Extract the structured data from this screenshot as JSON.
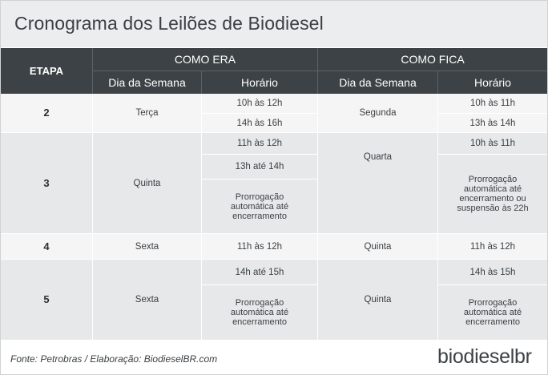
{
  "title": "Cronograma dos Leilões de Biodiesel",
  "header": {
    "etapa": "ETAPA",
    "como_era": "COMO ERA",
    "como_fica": "COMO FICA",
    "dia_da_semana": "Dia da Semana",
    "horario": "Horário"
  },
  "rows": [
    {
      "etapa": "2",
      "era_dia": "Terça",
      "era_horarios": [
        "10h às 12h",
        "14h às 16h"
      ],
      "fica_dia": "Segunda",
      "fica_horarios": [
        "10h às 11h",
        "13h às 14h"
      ]
    },
    {
      "etapa": "3",
      "era_dia": "Quinta",
      "era_horarios": [
        "11h às 12h",
        "13h até 14h",
        "Prorrogação automática até encerramento"
      ],
      "fica_dia": "Quarta",
      "fica_horarios": [
        "10h às 11h",
        "Prorrogação automática até encerramento ou suspensão às 22h"
      ]
    },
    {
      "etapa": "4",
      "era_dia": "Sexta",
      "era_horarios": [
        "11h às 12h"
      ],
      "fica_dia": "Quinta",
      "fica_horarios": [
        "11h às 12h"
      ]
    },
    {
      "etapa": "5",
      "era_dia": "Sexta",
      "era_horarios": [
        "14h até 15h",
        "Prorrogação automática até encerramento"
      ],
      "fica_dia": "Quinta",
      "fica_horarios": [
        "14h às 15h",
        "Prorrogação automática até encerramento"
      ]
    }
  ],
  "footer": {
    "source": "Fonte: Petrobras / Elaboração: BiodieselBR.com",
    "logo": "biodieselbr"
  }
}
